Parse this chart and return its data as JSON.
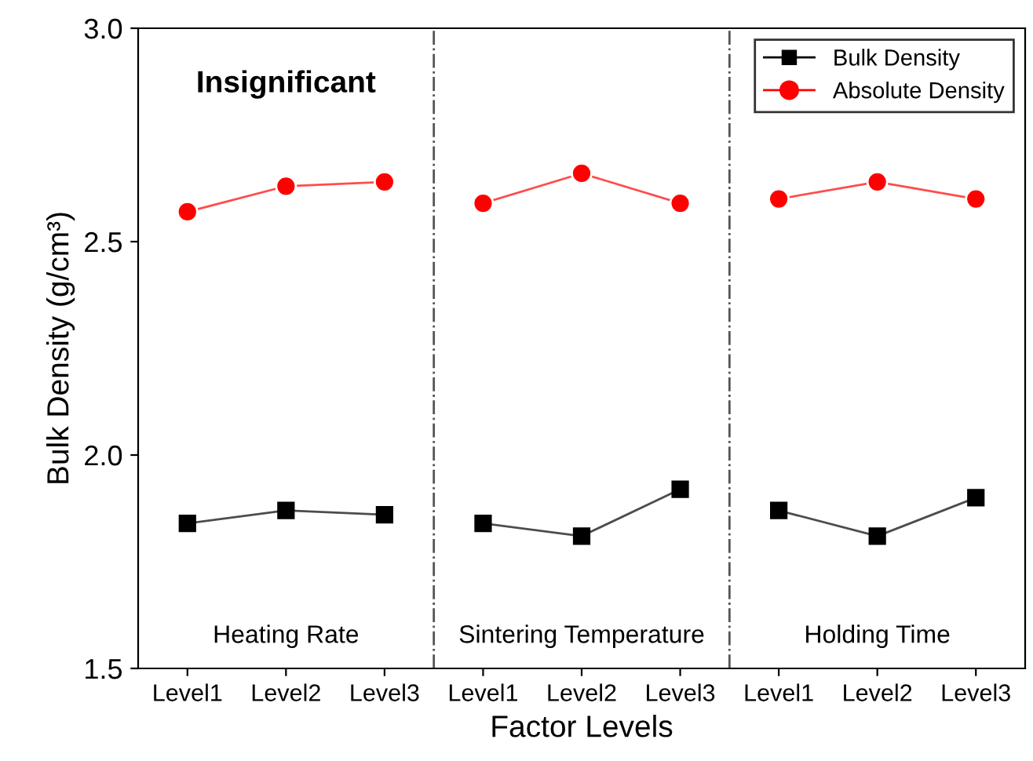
{
  "chart_data": {
    "type": "line",
    "xlabel": "Factor Levels",
    "ylabel": "Bulk Density (g/cm³)",
    "categories": [
      "Level1",
      "Level2",
      "Level3",
      "Level1",
      "Level2",
      "Level3",
      "Level1",
      "Level2",
      "Level3"
    ],
    "series": [
      {
        "name": "Bulk Density",
        "color": "#000000",
        "marker": "square",
        "values": [
          1.84,
          1.87,
          1.86,
          1.84,
          1.81,
          1.92,
          1.87,
          1.81,
          1.9
        ]
      },
      {
        "name": "Absolute Density",
        "color": "#ff0000",
        "marker": "circle",
        "values": [
          2.57,
          2.63,
          2.64,
          2.59,
          2.66,
          2.59,
          2.6,
          2.64,
          2.6
        ]
      }
    ],
    "ylim": [
      1.5,
      3.0
    ],
    "yticks": [
      {
        "value": 1.5,
        "label": "1.5"
      },
      {
        "value": 2.0,
        "label": "2.0"
      },
      {
        "value": 2.5,
        "label": "2.5"
      },
      {
        "value": 3.0,
        "label": "3.0"
      }
    ],
    "annotations": [
      "Insignificant",
      "Heating Rate",
      "Sintering Temperature",
      "Holding Time"
    ],
    "legend": "top right",
    "grid": false
  }
}
